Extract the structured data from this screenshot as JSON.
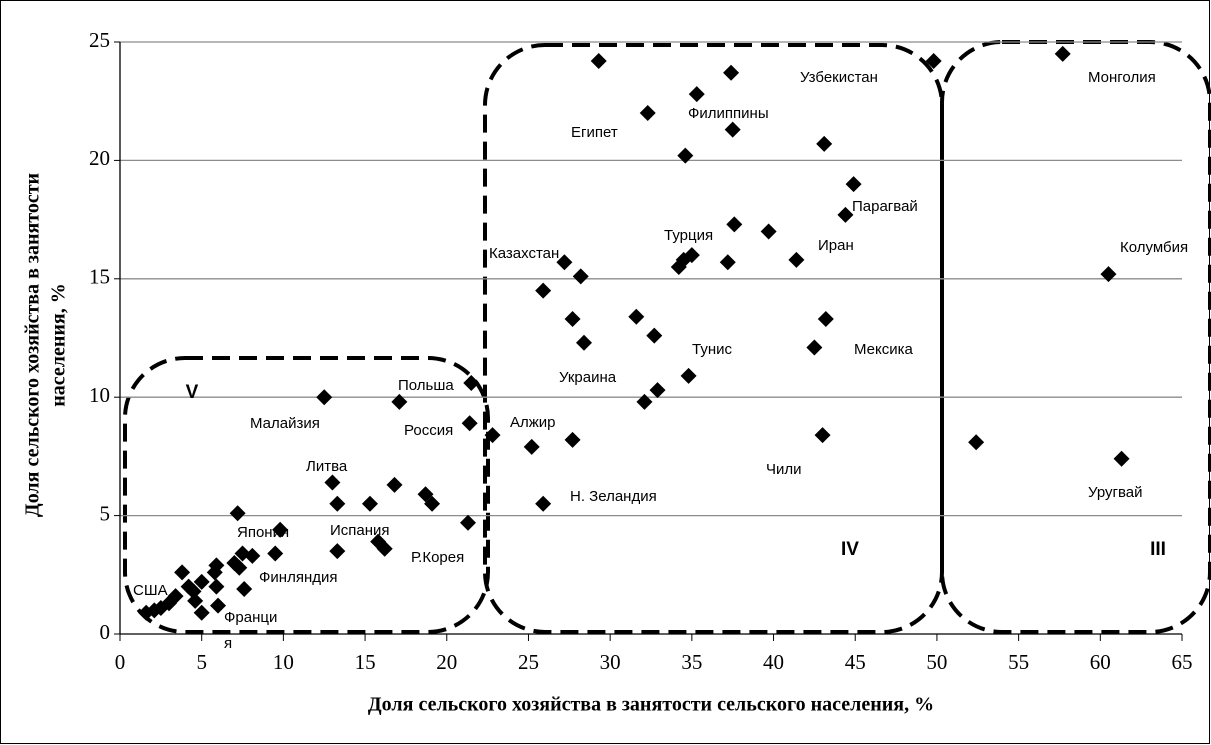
{
  "chart_data": {
    "type": "scatter",
    "xlabel": "Доля сельского хозяйства в занятости сельского населения, %",
    "ylabel": [
      "Доля сельского хозяйства в занятости",
      "населения, %"
    ],
    "xlim": [
      0,
      65
    ],
    "xticks": [
      0,
      5,
      10,
      15,
      20,
      25,
      30,
      35,
      40,
      45,
      50,
      55,
      60,
      65
    ],
    "ylim": [
      0,
      25
    ],
    "yticks": [
      0,
      5,
      10,
      15,
      20,
      25
    ],
    "grid": true,
    "color": "#000000",
    "x": [
      29.3,
      32.3,
      35.3,
      37.4,
      37.5,
      34.6,
      43.1,
      44.9,
      44.4,
      37.6,
      39.7,
      41.4,
      27.2,
      25.9,
      28.2,
      34.5,
      35.0,
      34.2,
      37.2,
      27.7,
      28.4,
      31.6,
      32.7,
      43.2,
      42.5,
      34.8,
      32.9,
      32.1,
      43.0,
      27.7,
      25.2,
      25.9,
      22.8,
      21.4,
      21.5,
      21.3,
      49.8,
      57.7,
      60.5,
      61.3,
      52.4,
      12.5,
      17.1,
      13.0,
      13.3,
      15.3,
      16.8,
      18.7,
      19.1,
      13.3,
      15.8,
      16.2,
      7.2,
      9.8,
      9.5,
      8.1,
      7.5,
      7.3,
      7.6,
      5.9,
      5.8,
      5.9,
      6.0,
      5.0,
      4.6,
      5.0,
      4.2,
      3.8,
      3.4,
      3.0,
      2.5,
      2.1,
      1.6,
      4.5,
      7.0
    ],
    "y": [
      24.2,
      22.0,
      22.8,
      23.7,
      21.3,
      20.2,
      20.7,
      19.0,
      17.7,
      17.3,
      17.0,
      15.8,
      15.7,
      14.5,
      15.1,
      15.8,
      16.0,
      15.5,
      15.7,
      13.3,
      12.3,
      13.4,
      12.6,
      13.3,
      12.1,
      10.9,
      10.3,
      9.8,
      8.4,
      8.2,
      7.9,
      5.5,
      8.4,
      8.9,
      10.6,
      4.7,
      24.2,
      24.5,
      15.2,
      7.4,
      8.1,
      10.0,
      9.8,
      6.4,
      5.5,
      5.5,
      6.3,
      5.9,
      5.5,
      3.5,
      3.9,
      3.6,
      5.1,
      4.4,
      3.4,
      3.3,
      3.4,
      2.8,
      1.9,
      2.9,
      2.6,
      2.0,
      1.2,
      2.2,
      1.4,
      0.9,
      2.0,
      2.6,
      1.6,
      1.3,
      1.1,
      1.0,
      0.9,
      1.8,
      3.0
    ],
    "annotations": [
      "Узбекистан",
      "Монголия",
      "Египет",
      "Филиппины",
      "Парагвай",
      "Турция",
      "Иран",
      "Казахстан",
      "Колумбия",
      "Тунис",
      "Мексика",
      "Украина",
      "Польша",
      "Малайзия",
      "Россия",
      "Алжир",
      "Литва",
      "Чили",
      "Н. Зеландия",
      "Уругвай",
      "Япония",
      "Испания",
      "Р.Корея",
      "Финляндия",
      "США",
      "Франци",
      "я"
    ],
    "regions": [
      "V",
      "IV",
      "III"
    ]
  }
}
